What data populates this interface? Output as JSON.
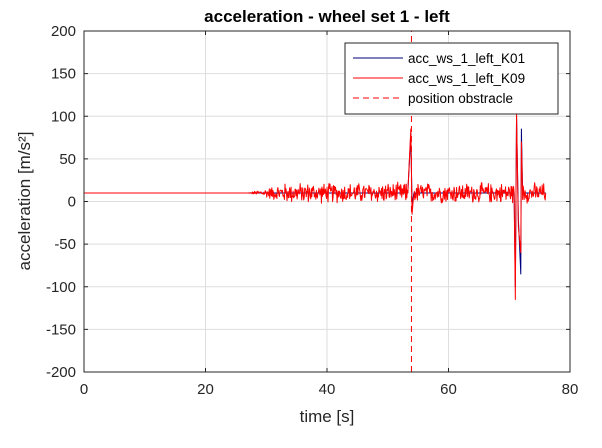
{
  "chart_data": {
    "type": "line",
    "title": "acceleration - wheel set 1 - left",
    "xlabel": "time [s]",
    "ylabel": "acceleration [m/s²]",
    "xlim": [
      0,
      80
    ],
    "ylim": [
      -200,
      200
    ],
    "xticks": [
      0,
      20,
      40,
      60,
      80
    ],
    "xtick_labels": [
      "0",
      "20",
      "40",
      "60",
      "80"
    ],
    "yticks": [
      -200,
      -150,
      -100,
      -50,
      0,
      50,
      100,
      150,
      200
    ],
    "ytick_labels": [
      "-200",
      "-150",
      "-100",
      "-50",
      "0",
      "50",
      "100",
      "150",
      "200"
    ],
    "grid": true,
    "legend_position": "top-right",
    "series": [
      {
        "name": "acc_ws_1_left_K01",
        "color": "#00007f",
        "x": [
          0,
          27,
          30,
          40,
          53.3,
          53.8,
          54.0,
          54.3,
          60,
          70.8,
          71.0,
          71.2,
          71.5,
          71.9,
          72.0,
          72.2,
          76
        ],
        "y": [
          10,
          10,
          10,
          10,
          10,
          80,
          -5,
          10,
          10,
          10,
          -100,
          100,
          -20,
          -85,
          85,
          10,
          10
        ]
      },
      {
        "name": "acc_ws_1_left_K09",
        "color": "#ff0000",
        "x": [
          0,
          27,
          30,
          40,
          53.3,
          53.8,
          54.0,
          54.3,
          60,
          70.8,
          71.0,
          71.2,
          71.5,
          71.9,
          72.0,
          72.2,
          76
        ],
        "y": [
          10,
          10,
          10,
          10,
          10,
          85,
          -15,
          10,
          10,
          10,
          -115,
          103,
          -30,
          -60,
          70,
          10,
          10
        ],
        "noise_start": 27,
        "noise_end": 76,
        "noise_amplitude": 12
      },
      {
        "name": "position obstracle",
        "color": "#ff0000",
        "style": "dashed",
        "x": [
          53.9,
          53.9
        ],
        "y": [
          -200,
          200
        ]
      }
    ]
  }
}
